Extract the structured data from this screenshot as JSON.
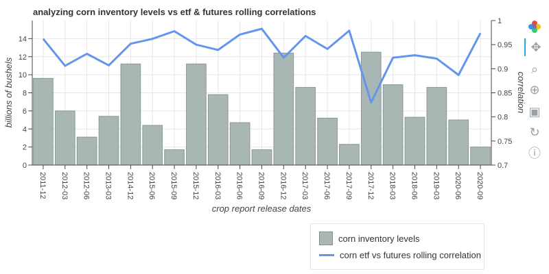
{
  "chart_data": {
    "type": "bar+line",
    "title": "analyzing corn inventory levels vs etf & futures rolling correlations",
    "xlabel": "crop report release dates",
    "ylabel_left": "billions of bushels",
    "ylabel_right": "correlation",
    "categories": [
      "2011-12",
      "2012-03",
      "2012-06",
      "2013-03",
      "2014-12",
      "2015-06",
      "2015-09",
      "2015-12",
      "2016-03",
      "2016-06",
      "2016-09",
      "2016-12",
      "2017-03",
      "2017-06",
      "2017-09",
      "2017-12",
      "2018-03",
      "2018-06",
      "2019-03",
      "2020-06",
      "2020-09"
    ],
    "ylim_left": [
      0,
      16
    ],
    "yticks_left": [
      0,
      2,
      4,
      6,
      8,
      10,
      12,
      14
    ],
    "ylim_right": [
      0.7,
      1.0
    ],
    "yticks_right": [
      0.7,
      0.75,
      0.8,
      0.85,
      0.9,
      0.95,
      1
    ],
    "series": [
      {
        "name": "corn inventory levels",
        "type": "bar",
        "color": "#a9b7b4",
        "values": [
          9.6,
          6.0,
          3.1,
          5.4,
          11.2,
          4.4,
          1.7,
          11.2,
          7.8,
          4.7,
          1.7,
          12.4,
          8.6,
          5.2,
          2.3,
          12.5,
          8.9,
          5.3,
          8.6,
          5.0,
          2.0
        ]
      },
      {
        "name": "corn etf vs futures rolling correlation",
        "type": "line",
        "color": "#6495ed",
        "values": [
          0.962,
          0.906,
          0.931,
          0.907,
          0.952,
          0.962,
          0.978,
          0.95,
          0.939,
          0.971,
          0.983,
          0.923,
          0.968,
          0.941,
          0.979,
          0.83,
          0.923,
          0.928,
          0.921,
          0.887,
          0.974
        ]
      }
    ],
    "grid": true,
    "legend_position": "bottom-right"
  },
  "toolbar": {
    "tools": [
      {
        "name": "bokeh-logo-icon",
        "interactable": false
      },
      {
        "name": "pan-icon",
        "interactable": true
      },
      {
        "name": "box-zoom-icon",
        "interactable": true
      },
      {
        "name": "wheel-zoom-icon",
        "interactable": true
      },
      {
        "name": "save-icon",
        "interactable": true
      },
      {
        "name": "reset-icon",
        "interactable": true
      },
      {
        "name": "help-icon",
        "interactable": true
      }
    ]
  }
}
